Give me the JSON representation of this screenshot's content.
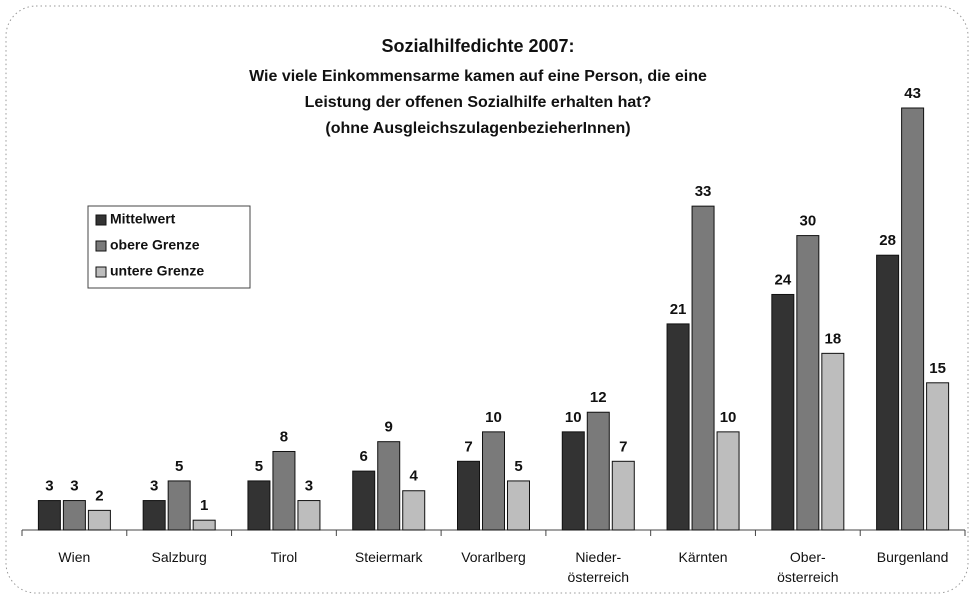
{
  "chart_data": {
    "type": "bar",
    "title": "Sozialhilfedichte 2007:",
    "subtitle": [
      "Wie viele Einkommensarme kamen auf eine Person, die eine",
      "Leistung der offenen Sozialhilfe erhalten hat?",
      "(ohne AusgleichszulagenbezieherInnen)"
    ],
    "categories": [
      "Wien",
      "Salzburg",
      "Tirol",
      "Steiermark",
      "Vorarlberg",
      "Nieder-\nösterreich",
      "Kärnten",
      "Ober-\nösterreich",
      "Burgenland"
    ],
    "series": [
      {
        "name": "Mittelwert",
        "color": "#333333",
        "values": [
          3,
          3,
          5,
          6,
          7,
          10,
          21,
          24,
          28
        ]
      },
      {
        "name": "obere Grenze",
        "color": "#7a7a7a",
        "values": [
          3,
          5,
          8,
          9,
          10,
          12,
          33,
          30,
          43
        ]
      },
      {
        "name": "untere Grenze",
        "color": "#bdbdbd",
        "values": [
          2,
          1,
          3,
          4,
          5,
          7,
          10,
          18,
          15
        ]
      }
    ],
    "legend": "upper-left"
  }
}
